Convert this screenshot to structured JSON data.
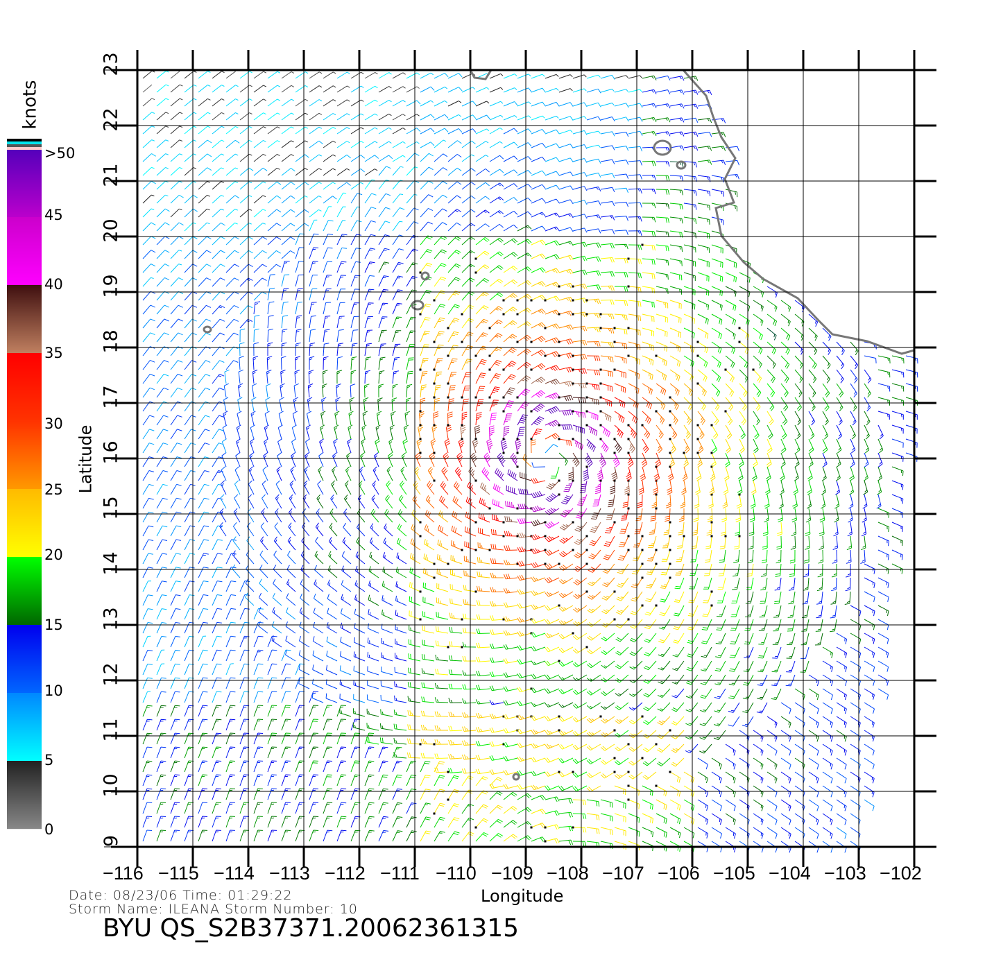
{
  "chart_data": {
    "type": "wind-barb-map",
    "xlabel": "Longitude",
    "ylabel": "Latitude",
    "xlim": [
      -116,
      -102
    ],
    "ylim": [
      9,
      23
    ],
    "xticks": [
      "-116",
      "-115",
      "-114",
      "-113",
      "-112",
      "-111",
      "-110",
      "-109",
      "-108",
      "-107",
      "-106",
      "-105",
      "-104",
      "-103",
      "-102"
    ],
    "yticks": [
      "9",
      "10",
      "11",
      "12",
      "13",
      "14",
      "15",
      "16",
      "17",
      "18",
      "19",
      "20",
      "21",
      "22",
      "23"
    ],
    "grid": true,
    "colorbar": {
      "unit": "knots",
      "labels": [
        "0",
        "5",
        "10",
        "15",
        "20",
        "25",
        "30",
        "35",
        "40",
        "45",
        ">50"
      ],
      "stops": [
        {
          "v": 0,
          "c": "#888888"
        },
        {
          "v": 5,
          "c": "#222222"
        },
        {
          "v": 5.01,
          "c": "#00ffff"
        },
        {
          "v": 10,
          "c": "#0088ff"
        },
        {
          "v": 10.01,
          "c": "#0066ff"
        },
        {
          "v": 15,
          "c": "#0000ee"
        },
        {
          "v": 15.01,
          "c": "#006600"
        },
        {
          "v": 20,
          "c": "#00ff00"
        },
        {
          "v": 20.01,
          "c": "#ffff00"
        },
        {
          "v": 25,
          "c": "#ffbb00"
        },
        {
          "v": 25.01,
          "c": "#ff9900"
        },
        {
          "v": 30,
          "c": "#ff3300"
        },
        {
          "v": 30.01,
          "c": "#ff3300"
        },
        {
          "v": 35,
          "c": "#ff0000"
        },
        {
          "v": 35.01,
          "c": "#c08060"
        },
        {
          "v": 40,
          "c": "#401010"
        },
        {
          "v": 40.01,
          "c": "#ff00ff"
        },
        {
          "v": 45,
          "c": "#cc00cc"
        },
        {
          "v": 45.01,
          "c": "#bb00cc"
        },
        {
          "v": 50,
          "c": "#5500bb"
        }
      ]
    },
    "storm_center_estimate": {
      "lon": -108.6,
      "lat": 16.0
    },
    "max_wind_estimate_knots": 55
  },
  "footer": {
    "date_line": "Date: 08/23/06   Time: 01:29:22",
    "storm_line": "Storm  Name: ILEANA    Storm  Number: 10",
    "product_id": "BYU  QS_S2B37371.20062361315"
  }
}
